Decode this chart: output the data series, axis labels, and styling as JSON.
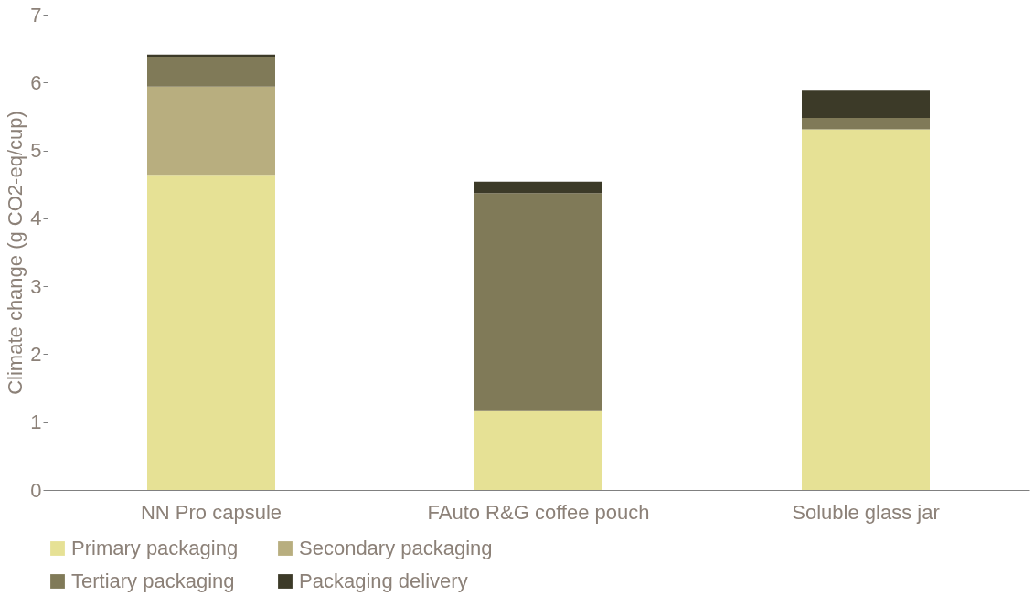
{
  "chart_data": {
    "type": "bar",
    "stacked": true,
    "ylabel": "Climate change (g CO2-eq/cup)",
    "categories": [
      "NN Pro capsule",
      "FAuto R&G coffee pouch",
      "Soluble glass jar"
    ],
    "series": [
      {
        "name": "Primary packaging",
        "color": "#e6e195",
        "values": [
          4.64,
          1.16,
          5.31
        ]
      },
      {
        "name": "Secondary packaging",
        "color": "#b8ae7f",
        "values": [
          1.3,
          0,
          0
        ]
      },
      {
        "name": "Tertiary packaging",
        "color": "#807a58",
        "values": [
          0.44,
          3.21,
          0.17
        ]
      },
      {
        "name": "Packaging delivery",
        "color": "#3c3a28",
        "values": [
          0.03,
          0.17,
          0.4
        ]
      }
    ],
    "ylim": [
      0,
      7
    ],
    "yticks": [
      0,
      1,
      2,
      3,
      4,
      5,
      6,
      7
    ],
    "grid": false,
    "legend": "bottom"
  }
}
